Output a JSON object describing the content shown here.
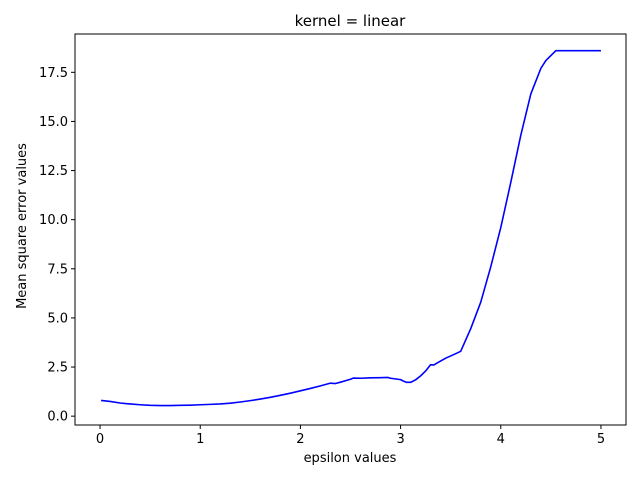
{
  "chart_data": {
    "type": "line",
    "title": "kernel = linear",
    "xlabel": "epsilon values",
    "ylabel": "Mean square error values",
    "xlim": [
      -0.25,
      5.25
    ],
    "ylim": [
      -0.45,
      19.45
    ],
    "xticks": [
      0,
      1,
      2,
      3,
      4,
      5
    ],
    "xtick_labels": [
      "0",
      "1",
      "2",
      "3",
      "4",
      "5"
    ],
    "yticks": [
      0.0,
      2.5,
      5.0,
      7.5,
      10.0,
      12.5,
      15.0,
      17.5
    ],
    "ytick_labels": [
      "0.0",
      "2.5",
      "5.0",
      "7.5",
      "10.0",
      "12.5",
      "15.0",
      "17.5"
    ],
    "grid": false,
    "line_color": "#0000ff",
    "series": [
      {
        "x": [
          0.01,
          0.1,
          0.2,
          0.3,
          0.4,
          0.5,
          0.6,
          0.7,
          0.8,
          0.9,
          1.0,
          1.1,
          1.2,
          1.3,
          1.4,
          1.5,
          1.6,
          1.7,
          1.8,
          1.9,
          2.0,
          2.1,
          2.2,
          2.3,
          2.35,
          2.4,
          2.5,
          2.53,
          2.6,
          2.7,
          2.8,
          2.87,
          2.9,
          3.0,
          3.03,
          3.06,
          3.1,
          3.15,
          3.2,
          3.25,
          3.3,
          3.33,
          3.37,
          3.45,
          3.55,
          3.6,
          3.7,
          3.8,
          3.9,
          4.0,
          4.1,
          4.2,
          4.3,
          4.4,
          4.45,
          4.5,
          4.55,
          4.6,
          4.7,
          4.8,
          4.9,
          5.0
        ],
        "values": [
          0.8,
          0.75,
          0.67,
          0.62,
          0.58,
          0.55,
          0.54,
          0.54,
          0.55,
          0.56,
          0.58,
          0.6,
          0.62,
          0.66,
          0.72,
          0.79,
          0.87,
          0.96,
          1.06,
          1.17,
          1.29,
          1.41,
          1.54,
          1.68,
          1.66,
          1.73,
          1.88,
          1.94,
          1.93,
          1.95,
          1.96,
          1.97,
          1.93,
          1.86,
          1.78,
          1.72,
          1.72,
          1.85,
          2.05,
          2.3,
          2.62,
          2.6,
          2.72,
          2.95,
          3.18,
          3.3,
          4.45,
          5.8,
          7.6,
          9.6,
          11.9,
          14.3,
          16.4,
          17.7,
          18.1,
          18.35,
          18.6,
          18.6,
          18.6,
          18.6,
          18.6,
          18.6
        ]
      }
    ]
  }
}
